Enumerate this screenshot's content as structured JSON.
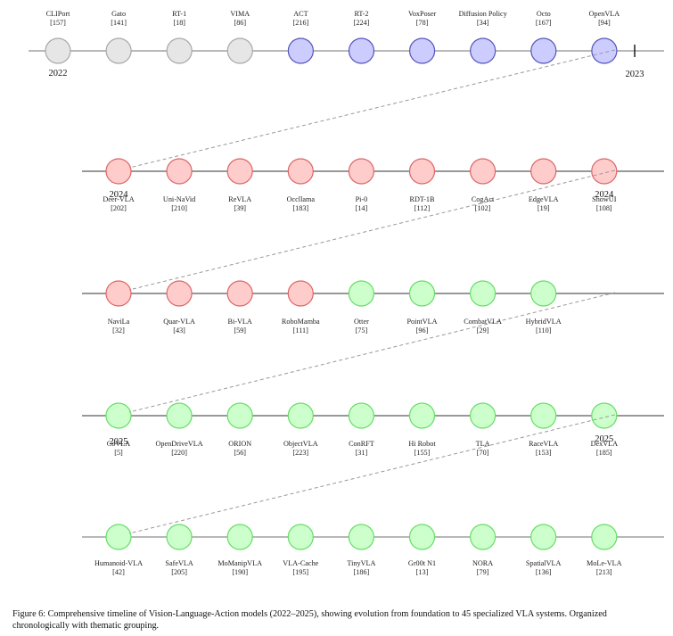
{
  "colors": {
    "foundation": {
      "fill": "#e6e6e6",
      "stroke": "#a8a8a8"
    },
    "early_vla": {
      "fill": "#ccccff",
      "stroke": "#5555bb"
    },
    "vla_2024": {
      "fill": "#ffcccc",
      "stroke": "#dd6666"
    },
    "vla_2025": {
      "fill": "#ccffcc",
      "stroke": "#66dd66"
    },
    "axis_line": "#888888",
    "connector": "#999999"
  },
  "rows": [
    {
      "label_position": "above",
      "year_markers": [
        {
          "text": "2022",
          "at_node": 0,
          "position": "below"
        },
        {
          "text": "2023",
          "at": "tick-end",
          "position": "below"
        }
      ],
      "nodes": [
        {
          "name": "CLIPort",
          "ref": "[157]",
          "group": "foundation"
        },
        {
          "name": "Gato",
          "ref": "[141]",
          "group": "foundation"
        },
        {
          "name": "RT-1",
          "ref": "[18]",
          "group": "foundation"
        },
        {
          "name": "VIMA",
          "ref": "[86]",
          "group": "foundation"
        },
        {
          "name": "ACT",
          "ref": "[216]",
          "group": "early_vla"
        },
        {
          "name": "RT-2",
          "ref": "[224]",
          "group": "early_vla"
        },
        {
          "name": "VoxPoser",
          "ref": "[78]",
          "group": "early_vla"
        },
        {
          "name": "Diffusion Policy",
          "ref": "[34]",
          "group": "early_vla"
        },
        {
          "name": "Octo",
          "ref": "[167]",
          "group": "early_vla"
        },
        {
          "name": "OpenVLA",
          "ref": "[94]",
          "group": "early_vla"
        }
      ]
    },
    {
      "label_position": "below",
      "year_markers": [
        {
          "text": "2024",
          "at_node": 0,
          "position": "overlay"
        },
        {
          "text": "2024",
          "at_node": 8,
          "position": "overlay"
        }
      ],
      "nodes": [
        {
          "name": "Deer-VLA",
          "ref": "[202]",
          "group": "vla_2024"
        },
        {
          "name": "Uni-NaVid",
          "ref": "[210]",
          "group": "vla_2024"
        },
        {
          "name": "ReVLA",
          "ref": "[39]",
          "group": "vla_2024"
        },
        {
          "name": "Occllama",
          "ref": "[183]",
          "group": "vla_2024"
        },
        {
          "name": "Pi-0",
          "ref": "[14]",
          "group": "vla_2024"
        },
        {
          "name": "RDT-1B",
          "ref": "[112]",
          "group": "vla_2024"
        },
        {
          "name": "CogAct",
          "ref": "[102]",
          "group": "vla_2024"
        },
        {
          "name": "EdgeVLA",
          "ref": "[19]",
          "group": "vla_2024"
        },
        {
          "name": "ShowUI",
          "ref": "[108]",
          "group": "vla_2024"
        }
      ]
    },
    {
      "label_position": "below",
      "year_markers": [],
      "nodes": [
        {
          "name": "NaviLa",
          "ref": "[32]",
          "group": "vla_2024"
        },
        {
          "name": "Quar-VLA",
          "ref": "[43]",
          "group": "vla_2024"
        },
        {
          "name": "Bi-VLA",
          "ref": "[59]",
          "group": "vla_2024"
        },
        {
          "name": "RoboMamba",
          "ref": "[111]",
          "group": "vla_2024"
        },
        {
          "name": "Otter",
          "ref": "[75]",
          "group": "vla_2025"
        },
        {
          "name": "PointVLA",
          "ref": "[96]",
          "group": "vla_2025"
        },
        {
          "name": "CombatVLA",
          "ref": "[29]",
          "group": "vla_2025"
        },
        {
          "name": "HybridVLA",
          "ref": "[110]",
          "group": "vla_2025"
        }
      ]
    },
    {
      "label_position": "below",
      "year_markers": [
        {
          "text": "2025",
          "at_node": 0,
          "position": "overlay"
        },
        {
          "text": "2025",
          "at_node": 8,
          "position": "overlay"
        }
      ],
      "nodes": [
        {
          "name": "CoVLA",
          "ref": "[5]",
          "group": "vla_2025"
        },
        {
          "name": "OpenDriveVLA",
          "ref": "[220]",
          "group": "vla_2025"
        },
        {
          "name": "ORION",
          "ref": "[56]",
          "group": "vla_2025"
        },
        {
          "name": "ObjectVLA",
          "ref": "[223]",
          "group": "vla_2025"
        },
        {
          "name": "ConRFT",
          "ref": "[31]",
          "group": "vla_2025"
        },
        {
          "name": "Hi Robot",
          "ref": "[155]",
          "group": "vla_2025"
        },
        {
          "name": "TLA",
          "ref": "[70]",
          "group": "vla_2025"
        },
        {
          "name": "RaceVLA",
          "ref": "[153]",
          "group": "vla_2025"
        },
        {
          "name": "DexVLA",
          "ref": "[185]",
          "group": "vla_2025"
        }
      ]
    },
    {
      "label_position": "below",
      "year_markers": [],
      "nodes": [
        {
          "name": "Humanoid-VLA",
          "ref": "[42]",
          "group": "vla_2025"
        },
        {
          "name": "SafeVLA",
          "ref": "[205]",
          "group": "vla_2025"
        },
        {
          "name": "MoManipVLA",
          "ref": "[190]",
          "group": "vla_2025"
        },
        {
          "name": "VLA-Cache",
          "ref": "[195]",
          "group": "vla_2025"
        },
        {
          "name": "TinyVLA",
          "ref": "[186]",
          "group": "vla_2025"
        },
        {
          "name": "Gr00t N1",
          "ref": "[13]",
          "group": "vla_2025"
        },
        {
          "name": "NORA",
          "ref": "[79]",
          "group": "vla_2025"
        },
        {
          "name": "SpatialVLA",
          "ref": "[136]",
          "group": "vla_2025"
        },
        {
          "name": "MoLe-VLA",
          "ref": "[213]",
          "group": "vla_2025"
        }
      ]
    }
  ],
  "caption": "Figure 6: Comprehensive timeline of Vision-Language-Action models (2022–2025), showing evolution from foundation to 45 specialized VLA systems. Organized chronologically with thematic grouping."
}
